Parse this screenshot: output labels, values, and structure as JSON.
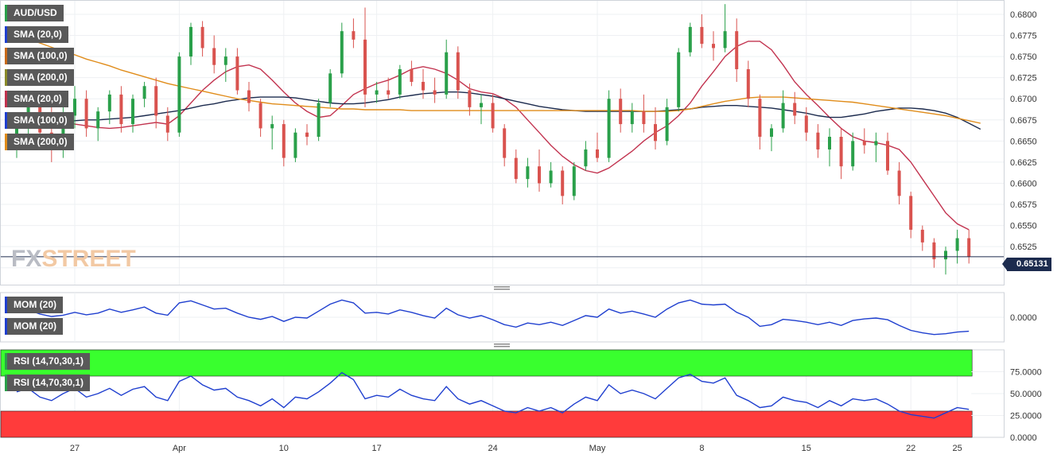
{
  "watermark": {
    "part1": "FX",
    "part2": "STREET"
  },
  "price_panel": {
    "legends": [
      {
        "label": "AUD/USD",
        "color": "#2aa04a"
      },
      {
        "label": "SMA (20,0)",
        "color": "#1f3fcf"
      },
      {
        "label": "SMA (100,0)",
        "color": "#c76a1a"
      },
      {
        "label": "SMA (200,0)",
        "color": "#8a8a2a"
      },
      {
        "label": "SMA (20,0)",
        "color": "#c2334f"
      },
      {
        "label": "SMA (100,0)",
        "color": "#1f3fcf"
      },
      {
        "label": "SMA (200,0)",
        "color": "#e08c1a"
      }
    ],
    "current_price": "0.65131"
  },
  "mom_panel": {
    "legends": [
      {
        "label": "MOM (20)",
        "color": "#1f3fcf"
      },
      {
        "label": "MOM (20)",
        "color": "#1f3fcf"
      }
    ]
  },
  "rsi_panel": {
    "legends": [
      {
        "label": "RSI (14,70,30,1)",
        "color": "#2aa04a"
      },
      {
        "label": "RSI (14,70,30,1)",
        "color": "#2aa04a"
      }
    ]
  },
  "chart_data": [
    {
      "type": "candlestick",
      "symbol": "AUD/USD",
      "ylim": [
        0.648,
        0.6815
      ],
      "yticks": [
        "0.6800",
        "0.6775",
        "0.6750",
        "0.6725",
        "0.6700",
        "0.6675",
        "0.6650",
        "0.6625",
        "0.6600",
        "0.6575",
        "0.6550",
        "0.6525",
        "0.6500"
      ],
      "xticks": [
        {
          "label": "27",
          "index": 5
        },
        {
          "label": "Apr",
          "index": 14
        },
        {
          "label": "10",
          "index": 23
        },
        {
          "label": "17",
          "index": 31
        },
        {
          "label": "24",
          "index": 41
        },
        {
          "label": "May",
          "index": 50
        },
        {
          "label": "8",
          "index": 59
        },
        {
          "label": "15",
          "index": 68
        },
        {
          "label": "22",
          "index": 77
        },
        {
          "label": "25",
          "index": 81
        }
      ],
      "current_price": 0.65131,
      "ohlc": [
        [
          0.664,
          0.668,
          0.663,
          0.667
        ],
        [
          0.667,
          0.671,
          0.665,
          0.669
        ],
        [
          0.669,
          0.6705,
          0.665,
          0.666
        ],
        [
          0.666,
          0.67,
          0.6625,
          0.664
        ],
        [
          0.664,
          0.669,
          0.663,
          0.668
        ],
        [
          0.668,
          0.6715,
          0.6665,
          0.67
        ],
        [
          0.67,
          0.671,
          0.6655,
          0.6665
        ],
        [
          0.6665,
          0.669,
          0.665,
          0.6685
        ],
        [
          0.6685,
          0.671,
          0.667,
          0.6705
        ],
        [
          0.6705,
          0.6715,
          0.666,
          0.667
        ],
        [
          0.667,
          0.6705,
          0.666,
          0.67
        ],
        [
          0.67,
          0.672,
          0.669,
          0.6715
        ],
        [
          0.6715,
          0.6725,
          0.6665,
          0.668
        ],
        [
          0.668,
          0.669,
          0.665,
          0.666
        ],
        [
          0.666,
          0.6755,
          0.6655,
          0.675
        ],
        [
          0.675,
          0.679,
          0.674,
          0.6785
        ],
        [
          0.6785,
          0.6792,
          0.675,
          0.676
        ],
        [
          0.676,
          0.6775,
          0.673,
          0.674
        ],
        [
          0.674,
          0.676,
          0.672,
          0.675
        ],
        [
          0.675,
          0.676,
          0.6705,
          0.671
        ],
        [
          0.671,
          0.672,
          0.6685,
          0.6695
        ],
        [
          0.6695,
          0.67,
          0.6655,
          0.6665
        ],
        [
          0.6665,
          0.668,
          0.664,
          0.667
        ],
        [
          0.667,
          0.6675,
          0.662,
          0.663
        ],
        [
          0.663,
          0.6665,
          0.6625,
          0.666
        ],
        [
          0.666,
          0.667,
          0.6645,
          0.6655
        ],
        [
          0.6655,
          0.67,
          0.665,
          0.6695
        ],
        [
          0.6695,
          0.6735,
          0.669,
          0.673
        ],
        [
          0.673,
          0.679,
          0.6725,
          0.678
        ],
        [
          0.678,
          0.6795,
          0.676,
          0.677
        ],
        [
          0.677,
          0.6808,
          0.669,
          0.6705
        ],
        [
          0.6705,
          0.672,
          0.6695,
          0.671
        ],
        [
          0.671,
          0.6725,
          0.67,
          0.6705
        ],
        [
          0.6705,
          0.674,
          0.67,
          0.6735
        ],
        [
          0.6735,
          0.6745,
          0.6715,
          0.672
        ],
        [
          0.672,
          0.6735,
          0.67,
          0.671
        ],
        [
          0.671,
          0.6725,
          0.6695,
          0.6705
        ],
        [
          0.6705,
          0.677,
          0.67,
          0.6755
        ],
        [
          0.6755,
          0.6762,
          0.67,
          0.671
        ],
        [
          0.671,
          0.6718,
          0.668,
          0.669
        ],
        [
          0.669,
          0.6705,
          0.667,
          0.6695
        ],
        [
          0.6695,
          0.6705,
          0.666,
          0.6665
        ],
        [
          0.6665,
          0.667,
          0.662,
          0.663
        ],
        [
          0.663,
          0.664,
          0.66,
          0.6605
        ],
        [
          0.6605,
          0.663,
          0.6595,
          0.662
        ],
        [
          0.662,
          0.664,
          0.659,
          0.66
        ],
        [
          0.66,
          0.6625,
          0.6595,
          0.6615
        ],
        [
          0.6615,
          0.662,
          0.6575,
          0.6585
        ],
        [
          0.6585,
          0.6625,
          0.658,
          0.662
        ],
        [
          0.662,
          0.665,
          0.6615,
          0.664
        ],
        [
          0.664,
          0.666,
          0.6625,
          0.663
        ],
        [
          0.663,
          0.671,
          0.6625,
          0.67
        ],
        [
          0.67,
          0.6712,
          0.666,
          0.667
        ],
        [
          0.667,
          0.6695,
          0.666,
          0.6685
        ],
        [
          0.6685,
          0.6705,
          0.666,
          0.667
        ],
        [
          0.667,
          0.669,
          0.664,
          0.665
        ],
        [
          0.665,
          0.67,
          0.6645,
          0.669
        ],
        [
          0.669,
          0.676,
          0.6685,
          0.6755
        ],
        [
          0.6755,
          0.679,
          0.675,
          0.6785
        ],
        [
          0.6785,
          0.68,
          0.676,
          0.6765
        ],
        [
          0.6765,
          0.678,
          0.6745,
          0.676
        ],
        [
          0.676,
          0.6812,
          0.6755,
          0.678
        ],
        [
          0.678,
          0.6795,
          0.672,
          0.6735
        ],
        [
          0.6735,
          0.6745,
          0.669,
          0.67
        ],
        [
          0.67,
          0.6705,
          0.664,
          0.6655
        ],
        [
          0.6655,
          0.667,
          0.6638,
          0.6665
        ],
        [
          0.6665,
          0.671,
          0.666,
          0.6695
        ],
        [
          0.6695,
          0.6708,
          0.667,
          0.668
        ],
        [
          0.668,
          0.669,
          0.665,
          0.666
        ],
        [
          0.666,
          0.667,
          0.663,
          0.664
        ],
        [
          0.664,
          0.6665,
          0.662,
          0.6655
        ],
        [
          0.6655,
          0.6665,
          0.6605,
          0.662
        ],
        [
          0.662,
          0.666,
          0.6615,
          0.665
        ],
        [
          0.665,
          0.6665,
          0.6635,
          0.6645
        ],
        [
          0.6645,
          0.666,
          0.6625,
          0.665
        ],
        [
          0.665,
          0.666,
          0.661,
          0.6615
        ],
        [
          0.6615,
          0.6625,
          0.6575,
          0.6585
        ],
        [
          0.6585,
          0.659,
          0.6535,
          0.6545
        ],
        [
          0.6545,
          0.655,
          0.652,
          0.653
        ],
        [
          0.653,
          0.6535,
          0.65,
          0.651
        ],
        [
          0.651,
          0.6525,
          0.6492,
          0.652
        ],
        [
          0.652,
          0.6545,
          0.6505,
          0.6535
        ],
        [
          0.6535,
          0.6545,
          0.6505,
          0.6513
        ]
      ],
      "series": [
        {
          "name": "SMA (20,0)",
          "color": "#c2334f",
          "values": [
            0.6682,
            0.668,
            0.6677,
            0.6674,
            0.6672,
            0.667,
            0.6668,
            0.6666,
            0.6665,
            0.6666,
            0.6668,
            0.667,
            0.6672,
            0.667,
            0.668,
            0.6695,
            0.671,
            0.6722,
            0.6732,
            0.6738,
            0.674,
            0.6735,
            0.6722,
            0.6708,
            0.6695,
            0.6685,
            0.6678,
            0.668,
            0.6692,
            0.6705,
            0.6712,
            0.6718,
            0.6722,
            0.6728,
            0.6735,
            0.6738,
            0.6735,
            0.673,
            0.6722,
            0.6712,
            0.6708,
            0.6706,
            0.67,
            0.669,
            0.6675,
            0.666,
            0.6645,
            0.6632,
            0.6622,
            0.6615,
            0.6612,
            0.6618,
            0.6628,
            0.6638,
            0.665,
            0.666,
            0.6668,
            0.668,
            0.6695,
            0.6715,
            0.6732,
            0.675,
            0.6762,
            0.6768,
            0.6768,
            0.6758,
            0.674,
            0.672,
            0.6705,
            0.6692,
            0.6678,
            0.6665,
            0.6655,
            0.665,
            0.6648,
            0.6645,
            0.664,
            0.6625,
            0.6605,
            0.6585,
            0.6565,
            0.6552,
            0.6545
          ]
        },
        {
          "name": "SMA (100,0)",
          "color": "#1c2b4e",
          "values": [
            0.6672,
            0.6672,
            0.6673,
            0.6673,
            0.6674,
            0.6674,
            0.6675,
            0.6675,
            0.6676,
            0.6677,
            0.6678,
            0.668,
            0.6682,
            0.6684,
            0.6686,
            0.6689,
            0.6692,
            0.6694,
            0.6697,
            0.6699,
            0.6701,
            0.6702,
            0.6702,
            0.6702,
            0.6701,
            0.6699,
            0.6697,
            0.6695,
            0.6694,
            0.6694,
            0.6695,
            0.6697,
            0.6699,
            0.6702,
            0.6704,
            0.6706,
            0.6707,
            0.6708,
            0.6708,
            0.6707,
            0.6705,
            0.6703,
            0.67,
            0.6697,
            0.6694,
            0.6691,
            0.6689,
            0.6687,
            0.6686,
            0.6685,
            0.6685,
            0.6685,
            0.6685,
            0.6685,
            0.6685,
            0.6685,
            0.6686,
            0.6687,
            0.6688,
            0.669,
            0.6691,
            0.6692,
            0.6692,
            0.6691,
            0.669,
            0.6689,
            0.6687,
            0.6685,
            0.6683,
            0.668,
            0.6678,
            0.6678,
            0.668,
            0.6682,
            0.6685,
            0.6687,
            0.6689,
            0.6689,
            0.6688,
            0.6686,
            0.6683,
            0.6678,
            0.6671,
            0.6664
          ]
        },
        {
          "name": "SMA (200,0)",
          "color": "#e08c1a",
          "values": [
            0.6775,
            0.6771,
            0.6766,
            0.6761,
            0.6756,
            0.6752,
            0.6747,
            0.6743,
            0.6739,
            0.6734,
            0.673,
            0.6726,
            0.6722,
            0.6718,
            0.6715,
            0.6712,
            0.6709,
            0.6706,
            0.6703,
            0.67,
            0.6698,
            0.6696,
            0.6694,
            0.6693,
            0.6692,
            0.6691,
            0.669,
            0.6689,
            0.6688,
            0.6688,
            0.6687,
            0.6687,
            0.6687,
            0.6687,
            0.6686,
            0.6686,
            0.6686,
            0.6686,
            0.6686,
            0.6686,
            0.6686,
            0.6686,
            0.6686,
            0.6686,
            0.6686,
            0.6686,
            0.6686,
            0.6686,
            0.6686,
            0.6686,
            0.6686,
            0.6686,
            0.6686,
            0.6686,
            0.6685,
            0.6685,
            0.6685,
            0.6686,
            0.6688,
            0.6691,
            0.6694,
            0.6697,
            0.6699,
            0.6701,
            0.6702,
            0.6702,
            0.6702,
            0.6701,
            0.67,
            0.6699,
            0.6698,
            0.6697,
            0.6696,
            0.6694,
            0.6692,
            0.669,
            0.6688,
            0.6686,
            0.6684,
            0.6682,
            0.668,
            0.6677,
            0.6674,
            0.6671
          ]
        }
      ]
    },
    {
      "type": "line",
      "name": "MOM (20)",
      "yticks": [
        "0.0000"
      ],
      "ylim": [
        -0.006,
        0.006
      ],
      "series": [
        {
          "name": "MOM (20)",
          "color": "#1f3fcf",
          "values": [
            0.0015,
            0.0018,
            0.0008,
            0.0002,
            0.0005,
            0.0012,
            0.0006,
            0.001,
            0.002,
            0.0012,
            0.0018,
            0.0025,
            0.001,
            0.0005,
            0.0035,
            0.004,
            0.003,
            0.002,
            0.0022,
            0.001,
            0.0,
            -0.0005,
            0.0002,
            -0.001,
            0.0,
            -0.0002,
            0.0015,
            0.0032,
            0.0042,
            0.0035,
            0.001,
            0.0012,
            0.0008,
            0.0018,
            0.0012,
            0.0004,
            -0.0002,
            0.0022,
            0.0006,
            -0.0002,
            0.0004,
            -0.0006,
            -0.0018,
            -0.0024,
            -0.0014,
            -0.0018,
            -0.0012,
            -0.002,
            -0.0008,
            0.0004,
            0.0,
            0.002,
            0.001,
            0.0015,
            0.0008,
            0.0,
            0.002,
            0.0035,
            0.0042,
            0.0032,
            0.003,
            0.0032,
            0.0012,
            0.0,
            -0.0022,
            -0.0018,
            -0.0005,
            -0.0008,
            -0.0012,
            -0.0018,
            -0.0012,
            -0.002,
            -0.0008,
            -0.0004,
            -0.0002,
            -0.0006,
            -0.002,
            -0.0032,
            -0.0038,
            -0.0042,
            -0.004,
            -0.0036,
            -0.0034
          ]
        }
      ]
    },
    {
      "type": "line",
      "name": "RSI (14,70,30,1)",
      "yticks": [
        "75.0000",
        "50.0000",
        "25.0000",
        "0.0000"
      ],
      "ylim": [
        0,
        100
      ],
      "bands": [
        {
          "name": "overbought",
          "from": 70,
          "to": 100,
          "color": "#39ff2e"
        },
        {
          "name": "oversold",
          "from": 0,
          "to": 30,
          "color": "#ff3b3b"
        }
      ],
      "series": [
        {
          "name": "RSI (14,70,30,1)",
          "color": "#1f3fcf",
          "values": [
            52,
            56,
            46,
            42,
            50,
            56,
            46,
            50,
            56,
            48,
            55,
            58,
            46,
            42,
            64,
            70,
            60,
            54,
            56,
            46,
            42,
            36,
            44,
            34,
            46,
            44,
            52,
            62,
            74,
            66,
            44,
            48,
            46,
            55,
            48,
            44,
            42,
            58,
            44,
            38,
            42,
            36,
            30,
            28,
            34,
            30,
            34,
            28,
            38,
            46,
            42,
            60,
            50,
            54,
            50,
            44,
            56,
            68,
            72,
            64,
            62,
            68,
            48,
            42,
            34,
            36,
            46,
            42,
            40,
            34,
            42,
            36,
            44,
            42,
            44,
            38,
            30,
            26,
            24,
            22,
            28,
            34,
            32
          ]
        }
      ]
    }
  ]
}
